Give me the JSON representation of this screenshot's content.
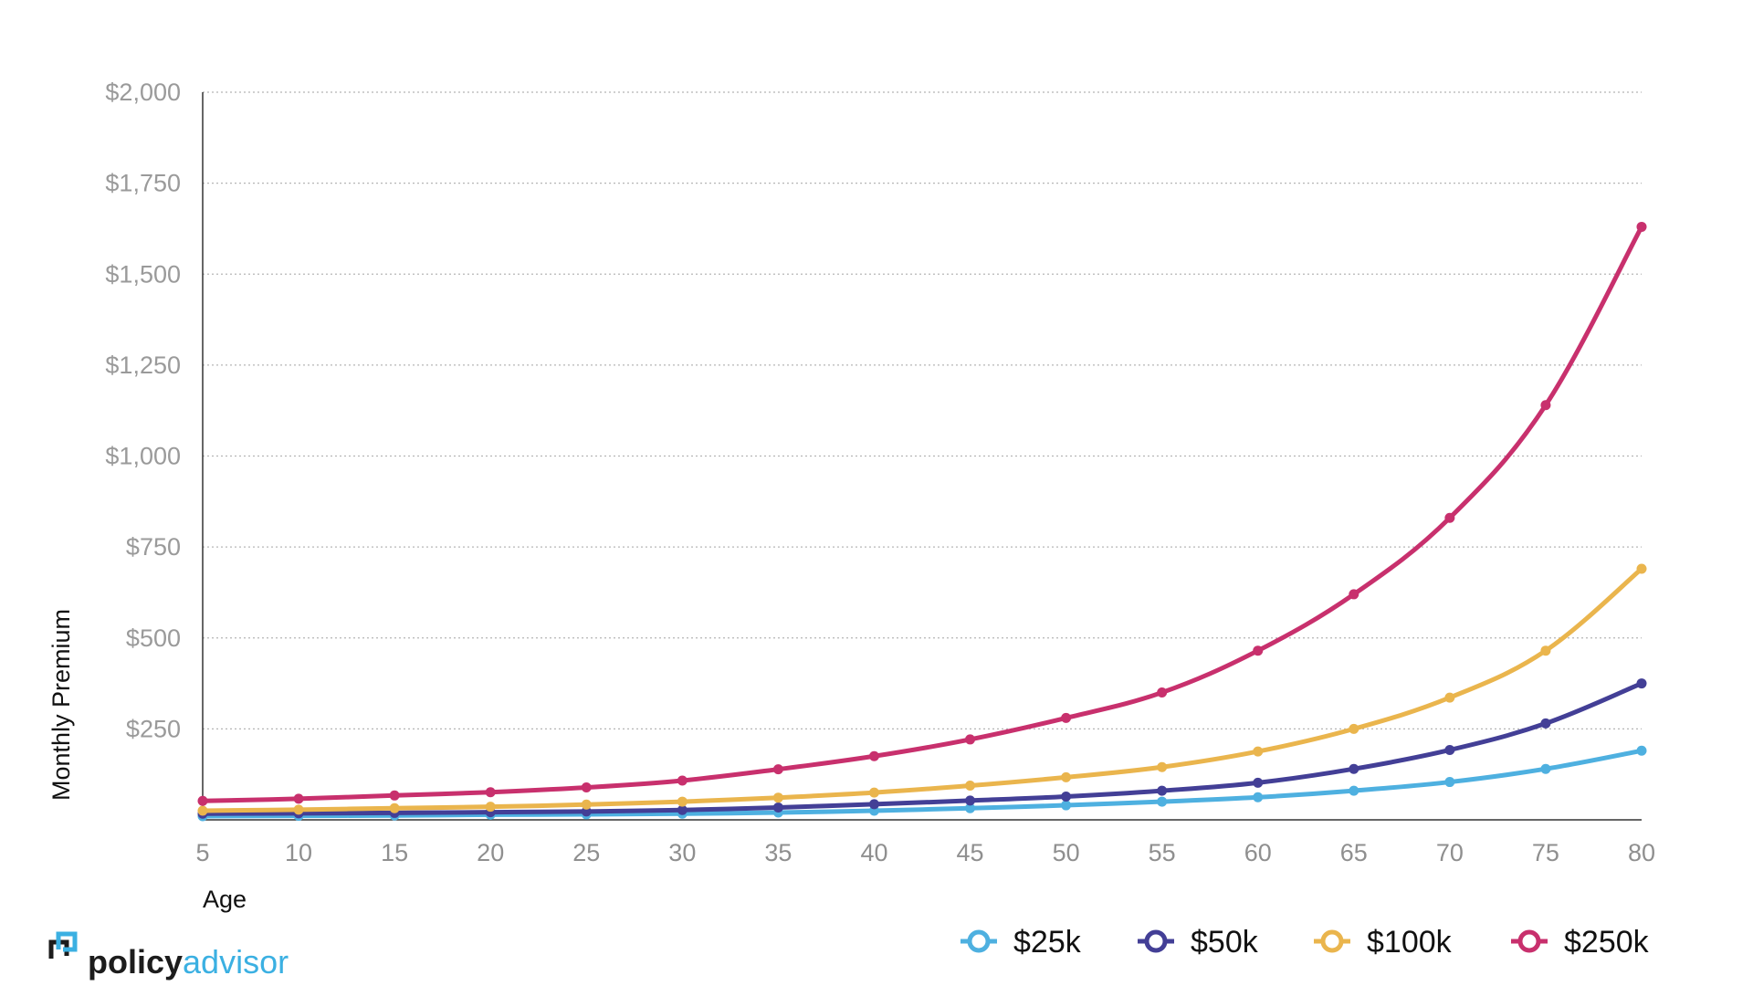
{
  "brand": {
    "name_bold": "policy",
    "name_light": "advisor"
  },
  "colors": {
    "s25k": "#4eb0e0",
    "s50k": "#433f96",
    "s100k": "#eab54d",
    "s250k": "#c8306d",
    "brand_blue": "#3bb0e2"
  },
  "chart_data": {
    "type": "line",
    "xlabel": "Age",
    "ylabel": "Monthly Premium",
    "x": [
      5,
      10,
      15,
      20,
      25,
      30,
      35,
      40,
      45,
      50,
      55,
      60,
      65,
      70,
      75,
      80
    ],
    "xlim": [
      5,
      80
    ],
    "ylim": [
      0,
      2000
    ],
    "yticks": [
      250,
      500,
      750,
      1000,
      1250,
      1500,
      1750,
      2000
    ],
    "ytick_labels": [
      "$250",
      "$500",
      "$750",
      "$1,000",
      "$1,250",
      "$1,500",
      "$1,750",
      "$2,000"
    ],
    "xtick_labels": [
      "5",
      "10",
      "15",
      "20",
      "25",
      "30",
      "35",
      "40",
      "45",
      "50",
      "55",
      "60",
      "65",
      "70",
      "75",
      "80"
    ],
    "grid": "horizontal dotted",
    "legend_position": "bottom-right",
    "series": [
      {
        "name": "$25k",
        "color": "#4eb0e0",
        "values": [
          10,
          11,
          12,
          14,
          15,
          17,
          20,
          25,
          32,
          40,
          50,
          62,
          80,
          104,
          140,
          190
        ]
      },
      {
        "name": "$50k",
        "color": "#433f96",
        "values": [
          17,
          18,
          19,
          21,
          23,
          27,
          34,
          43,
          53,
          64,
          80,
          102,
          140,
          192,
          265,
          375
        ]
      },
      {
        "name": "$100k",
        "color": "#eab54d",
        "values": [
          25,
          28,
          32,
          36,
          42,
          50,
          61,
          75,
          94,
          117,
          145,
          188,
          250,
          336,
          465,
          690
        ]
      },
      {
        "name": "$250k",
        "color": "#c8306d",
        "values": [
          52,
          58,
          67,
          76,
          89,
          108,
          139,
          175,
          221,
          280,
          350,
          465,
          620,
          830,
          1140,
          1630
        ]
      }
    ]
  }
}
